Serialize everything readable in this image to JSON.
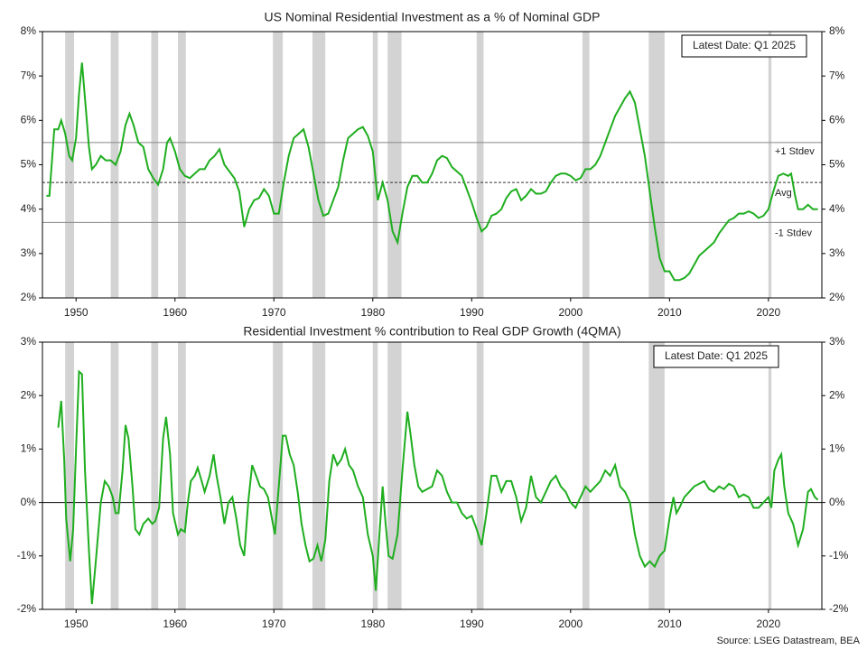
{
  "source": "Source: LSEG Datastream, BEA",
  "chart_data": [
    {
      "type": "line",
      "title": "US Nominal Residential Investment as a % of Nominal GDP",
      "color": "#1fae1f",
      "annotation": "Latest Date: Q1 2025",
      "xlim": [
        1946.6,
        2025.4
      ],
      "xticks": [
        1950,
        1960,
        1970,
        1980,
        1990,
        2000,
        2010,
        2020
      ],
      "ylim": [
        2,
        8
      ],
      "yticks": [
        {
          "value": 2,
          "label": "2%"
        },
        {
          "value": 3,
          "label": "3%"
        },
        {
          "value": 4,
          "label": "4%"
        },
        {
          "value": 5,
          "label": "5%"
        },
        {
          "value": 6,
          "label": "6%"
        },
        {
          "value": 7,
          "label": "7%"
        },
        {
          "value": 8,
          "label": "8%"
        }
      ],
      "reference_lines": [
        {
          "label": "+1 Stdev",
          "value": 5.5
        },
        {
          "label": "Avg",
          "value": 4.6
        },
        {
          "label": "-1 Stdev",
          "value": 3.7
        }
      ],
      "recessions": [
        [
          1948.9,
          1949.8
        ],
        [
          1953.5,
          1954.3
        ],
        [
          1957.6,
          1958.3
        ],
        [
          1960.3,
          1961.1
        ],
        [
          1969.9,
          1970.9
        ],
        [
          1973.9,
          1975.2
        ],
        [
          1980.0,
          1980.5
        ],
        [
          1981.5,
          1982.9
        ],
        [
          1990.5,
          1991.2
        ],
        [
          2001.2,
          2001.9
        ],
        [
          2007.9,
          2009.5
        ],
        [
          2020.0,
          2020.3
        ]
      ],
      "x": [
        1947.0,
        1947.3,
        1947.8,
        1948.2,
        1948.5,
        1948.9,
        1949.3,
        1949.6,
        1950.0,
        1950.3,
        1950.6,
        1950.9,
        1951.3,
        1951.6,
        1952.0,
        1952.5,
        1953.0,
        1953.5,
        1954.0,
        1954.5,
        1955.0,
        1955.4,
        1955.8,
        1956.3,
        1956.8,
        1957.3,
        1957.8,
        1958.3,
        1958.8,
        1959.2,
        1959.5,
        1960.0,
        1960.5,
        1961.0,
        1961.5,
        1962.0,
        1962.5,
        1963.0,
        1963.5,
        1964.0,
        1964.5,
        1965.0,
        1965.5,
        1966.0,
        1966.5,
        1967.0,
        1967.5,
        1968.0,
        1968.5,
        1969.0,
        1969.5,
        1970.0,
        1970.5,
        1971.0,
        1971.5,
        1972.0,
        1972.5,
        1973.0,
        1973.5,
        1974.0,
        1974.5,
        1975.0,
        1975.5,
        1976.0,
        1976.5,
        1977.0,
        1977.5,
        1978.0,
        1978.5,
        1979.0,
        1979.5,
        1980.0,
        1980.5,
        1981.0,
        1981.5,
        1982.0,
        1982.5,
        1983.0,
        1983.5,
        1984.0,
        1984.5,
        1985.0,
        1985.5,
        1986.0,
        1986.5,
        1987.0,
        1987.5,
        1988.0,
        1988.5,
        1989.0,
        1989.5,
        1990.0,
        1990.5,
        1991.0,
        1991.5,
        1992.0,
        1992.5,
        1993.0,
        1993.5,
        1994.0,
        1994.5,
        1995.0,
        1995.5,
        1996.0,
        1996.5,
        1997.0,
        1997.5,
        1998.0,
        1998.5,
        1999.0,
        1999.5,
        2000.0,
        2000.5,
        2001.0,
        2001.5,
        2002.0,
        2002.5,
        2003.0,
        2003.5,
        2004.0,
        2004.5,
        2005.0,
        2005.5,
        2006.0,
        2006.5,
        2007.0,
        2007.5,
        2008.0,
        2008.5,
        2009.0,
        2009.5,
        2010.0,
        2010.5,
        2011.0,
        2011.5,
        2012.0,
        2012.5,
        2013.0,
        2013.5,
        2014.0,
        2014.5,
        2015.0,
        2015.5,
        2016.0,
        2016.5,
        2017.0,
        2017.5,
        2018.0,
        2018.5,
        2019.0,
        2019.5,
        2020.0,
        2020.5,
        2021.0,
        2021.5,
        2022.0,
        2022.3,
        2022.7,
        2023.0,
        2023.5,
        2024.0,
        2024.5,
        2025.0
      ],
      "values": [
        4.3,
        4.3,
        5.8,
        5.8,
        6.0,
        5.7,
        5.2,
        5.1,
        5.6,
        6.6,
        7.3,
        6.5,
        5.4,
        4.9,
        5.0,
        5.2,
        5.1,
        5.1,
        5.0,
        5.3,
        5.9,
        6.15,
        5.9,
        5.5,
        5.4,
        4.9,
        4.7,
        4.55,
        4.9,
        5.5,
        5.6,
        5.3,
        4.9,
        4.75,
        4.7,
        4.8,
        4.9,
        4.9,
        5.1,
        5.2,
        5.35,
        5.0,
        4.85,
        4.7,
        4.4,
        3.6,
        4.0,
        4.2,
        4.25,
        4.45,
        4.3,
        3.9,
        3.9,
        4.6,
        5.2,
        5.6,
        5.7,
        5.8,
        5.4,
        4.8,
        4.2,
        3.85,
        3.9,
        4.2,
        4.5,
        5.1,
        5.6,
        5.7,
        5.8,
        5.85,
        5.65,
        5.3,
        4.2,
        4.6,
        4.2,
        3.5,
        3.25,
        3.9,
        4.5,
        4.75,
        4.75,
        4.6,
        4.6,
        4.8,
        5.1,
        5.2,
        5.15,
        4.95,
        4.85,
        4.75,
        4.45,
        4.15,
        3.8,
        3.5,
        3.6,
        3.85,
        3.9,
        4.0,
        4.25,
        4.4,
        4.45,
        4.2,
        4.3,
        4.45,
        4.35,
        4.35,
        4.4,
        4.6,
        4.75,
        4.8,
        4.8,
        4.75,
        4.65,
        4.7,
        4.9,
        4.9,
        5.0,
        5.2,
        5.5,
        5.8,
        6.1,
        6.3,
        6.5,
        6.65,
        6.4,
        5.8,
        5.2,
        4.4,
        3.6,
        2.9,
        2.6,
        2.6,
        2.4,
        2.4,
        2.45,
        2.55,
        2.75,
        2.95,
        3.05,
        3.15,
        3.25,
        3.45,
        3.6,
        3.75,
        3.8,
        3.9,
        3.9,
        3.95,
        3.9,
        3.8,
        3.85,
        4.0,
        4.4,
        4.75,
        4.8,
        4.75,
        4.8,
        4.3,
        4.0,
        4.0,
        4.1,
        4.0,
        4.0
      ]
    },
    {
      "type": "line",
      "title": "Residential Investment % contribution to Real GDP Growth (4QMA)",
      "color": "#1fae1f",
      "annotation": "Latest Date: Q1 2025",
      "xlim": [
        1946.6,
        2025.4
      ],
      "xticks": [
        1950,
        1960,
        1970,
        1980,
        1990,
        2000,
        2010,
        2020
      ],
      "ylim": [
        -2,
        3
      ],
      "yticks": [
        {
          "value": -2,
          "label": "-2%"
        },
        {
          "value": -1,
          "label": "-1%"
        },
        {
          "value": 0,
          "label": "0%"
        },
        {
          "value": 1,
          "label": "1%"
        },
        {
          "value": 2,
          "label": "2%"
        },
        {
          "value": 3,
          "label": "3%"
        }
      ],
      "zero_line": 0,
      "recessions": [
        [
          1948.9,
          1949.8
        ],
        [
          1953.5,
          1954.3
        ],
        [
          1957.6,
          1958.3
        ],
        [
          1960.3,
          1961.1
        ],
        [
          1969.9,
          1970.9
        ],
        [
          1973.9,
          1975.2
        ],
        [
          1980.0,
          1980.5
        ],
        [
          1981.5,
          1982.9
        ],
        [
          1990.5,
          1991.2
        ],
        [
          2001.2,
          2001.9
        ],
        [
          2007.9,
          2009.5
        ],
        [
          2020.0,
          2020.3
        ]
      ],
      "x": [
        1948.2,
        1948.5,
        1948.8,
        1949.0,
        1949.4,
        1949.7,
        1950.0,
        1950.3,
        1950.6,
        1950.9,
        1951.3,
        1951.6,
        1952.0,
        1952.5,
        1952.9,
        1953.3,
        1953.7,
        1954.0,
        1954.3,
        1954.7,
        1955.0,
        1955.3,
        1955.7,
        1956.0,
        1956.4,
        1956.8,
        1957.3,
        1957.7,
        1958.0,
        1958.4,
        1958.8,
        1959.1,
        1959.5,
        1959.8,
        1960.3,
        1960.6,
        1961.0,
        1961.3,
        1961.6,
        1962.0,
        1962.3,
        1962.7,
        1963.0,
        1963.5,
        1963.9,
        1964.2,
        1964.6,
        1965.0,
        1965.4,
        1965.8,
        1966.2,
        1966.6,
        1967.0,
        1967.4,
        1967.8,
        1968.2,
        1968.6,
        1969.0,
        1969.4,
        1969.8,
        1970.1,
        1970.5,
        1970.9,
        1971.2,
        1971.6,
        1972.0,
        1972.4,
        1972.8,
        1973.2,
        1973.6,
        1974.0,
        1974.4,
        1974.8,
        1975.2,
        1975.6,
        1976.0,
        1976.4,
        1976.8,
        1977.2,
        1977.6,
        1978.0,
        1978.5,
        1979.0,
        1979.5,
        1980.0,
        1980.3,
        1980.7,
        1981.0,
        1981.3,
        1981.6,
        1982.0,
        1982.5,
        1983.0,
        1983.5,
        1983.8,
        1984.2,
        1984.6,
        1985.0,
        1985.5,
        1986.0,
        1986.5,
        1987.0,
        1987.5,
        1988.0,
        1988.5,
        1989.0,
        1989.5,
        1990.0,
        1990.5,
        1991.0,
        1991.5,
        1992.0,
        1992.5,
        1993.0,
        1993.5,
        1994.0,
        1994.5,
        1995.0,
        1995.5,
        1996.0,
        1996.5,
        1997.0,
        1997.5,
        1998.0,
        1998.5,
        1999.0,
        1999.5,
        2000.0,
        2000.5,
        2001.0,
        2001.5,
        2002.0,
        2002.5,
        2003.0,
        2003.5,
        2004.0,
        2004.5,
        2005.0,
        2005.5,
        2006.0,
        2006.5,
        2007.0,
        2007.5,
        2008.0,
        2008.5,
        2009.0,
        2009.5,
        2010.0,
        2010.4,
        2010.7,
        2011.0,
        2011.5,
        2012.0,
        2012.5,
        2013.0,
        2013.5,
        2014.0,
        2014.5,
        2015.0,
        2015.5,
        2016.0,
        2016.5,
        2017.0,
        2017.5,
        2018.0,
        2018.5,
        2019.0,
        2019.5,
        2020.0,
        2020.3,
        2020.6,
        2021.0,
        2021.3,
        2021.6,
        2022.0,
        2022.5,
        2023.0,
        2023.5,
        2024.0,
        2024.3,
        2024.7,
        2025.0
      ],
      "values": [
        1.4,
        1.9,
        0.8,
        -0.3,
        -1.1,
        -0.5,
        1.0,
        2.45,
        2.4,
        0.6,
        -0.9,
        -1.9,
        -1.1,
        0.0,
        0.4,
        0.3,
        0.1,
        -0.2,
        -0.2,
        0.6,
        1.45,
        1.2,
        0.3,
        -0.5,
        -0.6,
        -0.4,
        -0.3,
        -0.4,
        -0.35,
        -0.1,
        1.2,
        1.6,
        0.9,
        -0.2,
        -0.6,
        -0.5,
        -0.55,
        0.0,
        0.4,
        0.5,
        0.65,
        0.4,
        0.2,
        0.5,
        0.9,
        0.5,
        0.1,
        -0.4,
        0.0,
        0.1,
        -0.3,
        -0.8,
        -1.0,
        0.0,
        0.7,
        0.5,
        0.3,
        0.25,
        0.1,
        -0.3,
        -0.6,
        0.3,
        1.25,
        1.25,
        0.9,
        0.7,
        0.2,
        -0.4,
        -0.8,
        -1.1,
        -1.05,
        -0.8,
        -1.1,
        -0.7,
        0.4,
        0.9,
        0.7,
        0.8,
        1.0,
        0.7,
        0.6,
        0.3,
        0.1,
        -0.6,
        -1.0,
        -1.65,
        -0.5,
        0.3,
        -0.4,
        -1.0,
        -1.05,
        -0.6,
        0.6,
        1.7,
        1.3,
        0.7,
        0.3,
        0.2,
        0.25,
        0.3,
        0.6,
        0.5,
        0.2,
        0.0,
        0.0,
        -0.2,
        -0.3,
        -0.25,
        -0.5,
        -0.8,
        -0.2,
        0.5,
        0.5,
        0.2,
        0.4,
        0.4,
        0.1,
        -0.35,
        -0.1,
        0.5,
        0.1,
        0.0,
        0.2,
        0.4,
        0.5,
        0.3,
        0.2,
        0.0,
        -0.1,
        0.1,
        0.3,
        0.2,
        0.3,
        0.4,
        0.6,
        0.5,
        0.7,
        0.3,
        0.2,
        0.0,
        -0.6,
        -1.0,
        -1.2,
        -1.1,
        -1.2,
        -1.0,
        -0.9,
        -0.3,
        0.1,
        -0.2,
        -0.1,
        0.1,
        0.2,
        0.3,
        0.35,
        0.4,
        0.25,
        0.2,
        0.3,
        0.25,
        0.35,
        0.3,
        0.1,
        0.15,
        0.1,
        -0.1,
        -0.1,
        0.0,
        0.1,
        -0.1,
        0.6,
        0.8,
        0.9,
        0.3,
        -0.2,
        -0.4,
        -0.8,
        -0.5,
        0.2,
        0.25,
        0.1,
        0.05
      ]
    }
  ]
}
